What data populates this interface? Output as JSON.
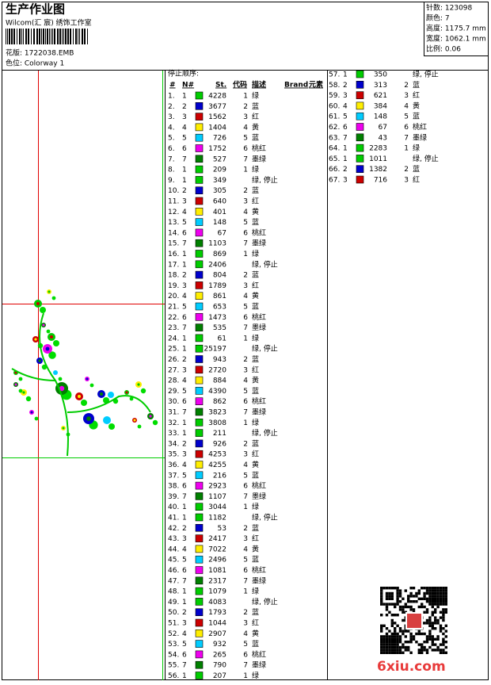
{
  "header": {
    "title": "生产作业图",
    "studio": "Wilcom(汇 宸) 绣饰工作室",
    "design": "花版: 1722038.EMB",
    "colorway": "色位: Colorway 1"
  },
  "info": [
    "针数: 123098",
    "颜色: 7",
    "高度: 1175.7 mm",
    "宽度: 1062.1 mm",
    "比例: 0.06"
  ],
  "table": {
    "title": "停止顺序:",
    "columns": [
      "#",
      "N#",
      "St.",
      "代码",
      "描述",
      "Brand",
      "元素"
    ],
    "swatch_colors": {
      "1": "#00cc00",
      "2": "#0000cc",
      "3": "#cc0000",
      "4": "#ffee00",
      "5": "#00ccff",
      "6": "#ee00ee",
      "7": "#008000"
    },
    "rows": [
      [
        "1.",
        "1",
        "4228",
        "1",
        "绿"
      ],
      [
        "2.",
        "2",
        "3677",
        "2",
        "蓝"
      ],
      [
        "3.",
        "3",
        "1562",
        "3",
        "红"
      ],
      [
        "4.",
        "4",
        "1404",
        "4",
        "黄"
      ],
      [
        "5.",
        "5",
        "726",
        "5",
        "蓝"
      ],
      [
        "6.",
        "6",
        "1752",
        "6",
        "桃红"
      ],
      [
        "7.",
        "7",
        "527",
        "7",
        "墨绿"
      ],
      [
        "8.",
        "1",
        "209",
        "1",
        "绿"
      ],
      [
        "9.",
        "1",
        "349",
        "",
        "绿, 停止"
      ],
      [
        "10.",
        "2",
        "305",
        "2",
        "蓝"
      ],
      [
        "11.",
        "3",
        "640",
        "3",
        "红"
      ],
      [
        "12.",
        "4",
        "401",
        "4",
        "黄"
      ],
      [
        "13.",
        "5",
        "148",
        "5",
        "蓝"
      ],
      [
        "14.",
        "6",
        "67",
        "6",
        "桃红"
      ],
      [
        "15.",
        "7",
        "1103",
        "7",
        "墨绿"
      ],
      [
        "16.",
        "1",
        "869",
        "1",
        "绿"
      ],
      [
        "17.",
        "1",
        "2406",
        "",
        "绿, 停止"
      ],
      [
        "18.",
        "2",
        "804",
        "2",
        "蓝"
      ],
      [
        "19.",
        "3",
        "1789",
        "3",
        "红"
      ],
      [
        "20.",
        "4",
        "861",
        "4",
        "黄"
      ],
      [
        "21.",
        "5",
        "653",
        "5",
        "蓝"
      ],
      [
        "22.",
        "6",
        "1473",
        "6",
        "桃红"
      ],
      [
        "23.",
        "7",
        "535",
        "7",
        "墨绿"
      ],
      [
        "24.",
        "1",
        "61",
        "1",
        "绿"
      ],
      [
        "25.",
        "1",
        "25197",
        "",
        "绿, 停止"
      ],
      [
        "26.",
        "2",
        "943",
        "2",
        "蓝"
      ],
      [
        "27.",
        "3",
        "2720",
        "3",
        "红"
      ],
      [
        "28.",
        "4",
        "884",
        "4",
        "黄"
      ],
      [
        "29.",
        "5",
        "4390",
        "5",
        "蓝"
      ],
      [
        "30.",
        "6",
        "862",
        "6",
        "桃红"
      ],
      [
        "31.",
        "7",
        "3823",
        "7",
        "墨绿"
      ],
      [
        "32.",
        "1",
        "3808",
        "1",
        "绿"
      ],
      [
        "33.",
        "1",
        "211",
        "",
        "绿, 停止"
      ],
      [
        "34.",
        "2",
        "926",
        "2",
        "蓝"
      ],
      [
        "35.",
        "3",
        "4253",
        "3",
        "红"
      ],
      [
        "36.",
        "4",
        "4255",
        "4",
        "黄"
      ],
      [
        "37.",
        "5",
        "216",
        "5",
        "蓝"
      ],
      [
        "38.",
        "6",
        "2923",
        "6",
        "桃红"
      ],
      [
        "39.",
        "7",
        "1107",
        "7",
        "墨绿"
      ],
      [
        "40.",
        "1",
        "3044",
        "1",
        "绿"
      ],
      [
        "41.",
        "1",
        "1182",
        "",
        "绿, 停止"
      ],
      [
        "42.",
        "2",
        "53",
        "2",
        "蓝"
      ],
      [
        "43.",
        "3",
        "2417",
        "3",
        "红"
      ],
      [
        "44.",
        "4",
        "7022",
        "4",
        "黄"
      ],
      [
        "45.",
        "5",
        "2496",
        "5",
        "蓝"
      ],
      [
        "46.",
        "6",
        "1081",
        "6",
        "桃红"
      ],
      [
        "47.",
        "7",
        "2317",
        "7",
        "墨绿"
      ],
      [
        "48.",
        "1",
        "1079",
        "1",
        "绿"
      ],
      [
        "49.",
        "1",
        "4083",
        "",
        "绿, 停止"
      ],
      [
        "50.",
        "2",
        "1793",
        "2",
        "蓝"
      ],
      [
        "51.",
        "3",
        "1044",
        "3",
        "红"
      ],
      [
        "52.",
        "4",
        "2907",
        "4",
        "黄"
      ],
      [
        "53.",
        "5",
        "932",
        "5",
        "蓝"
      ],
      [
        "54.",
        "6",
        "265",
        "6",
        "桃红"
      ],
      [
        "55.",
        "7",
        "790",
        "7",
        "墨绿"
      ],
      [
        "56.",
        "1",
        "207",
        "1",
        "绿"
      ],
      [
        "57.",
        "1",
        "350",
        "",
        "绿, 停止"
      ],
      [
        "58.",
        "2",
        "313",
        "2",
        "蓝"
      ],
      [
        "59.",
        "3",
        "621",
        "3",
        "红"
      ],
      [
        "60.",
        "4",
        "384",
        "4",
        "黄"
      ],
      [
        "61.",
        "5",
        "148",
        "5",
        "蓝"
      ],
      [
        "62.",
        "6",
        "67",
        "6",
        "桃红"
      ],
      [
        "63.",
        "7",
        "43",
        "7",
        "墨绿"
      ],
      [
        "64.",
        "1",
        "2283",
        "1",
        "绿"
      ],
      [
        "65.",
        "1",
        "1011",
        "",
        "绿, 停止"
      ],
      [
        "66.",
        "2",
        "1382",
        "2",
        "蓝"
      ],
      [
        "67.",
        "3",
        "716",
        "3",
        "红"
      ]
    ]
  },
  "watermark": "6xiu.com"
}
